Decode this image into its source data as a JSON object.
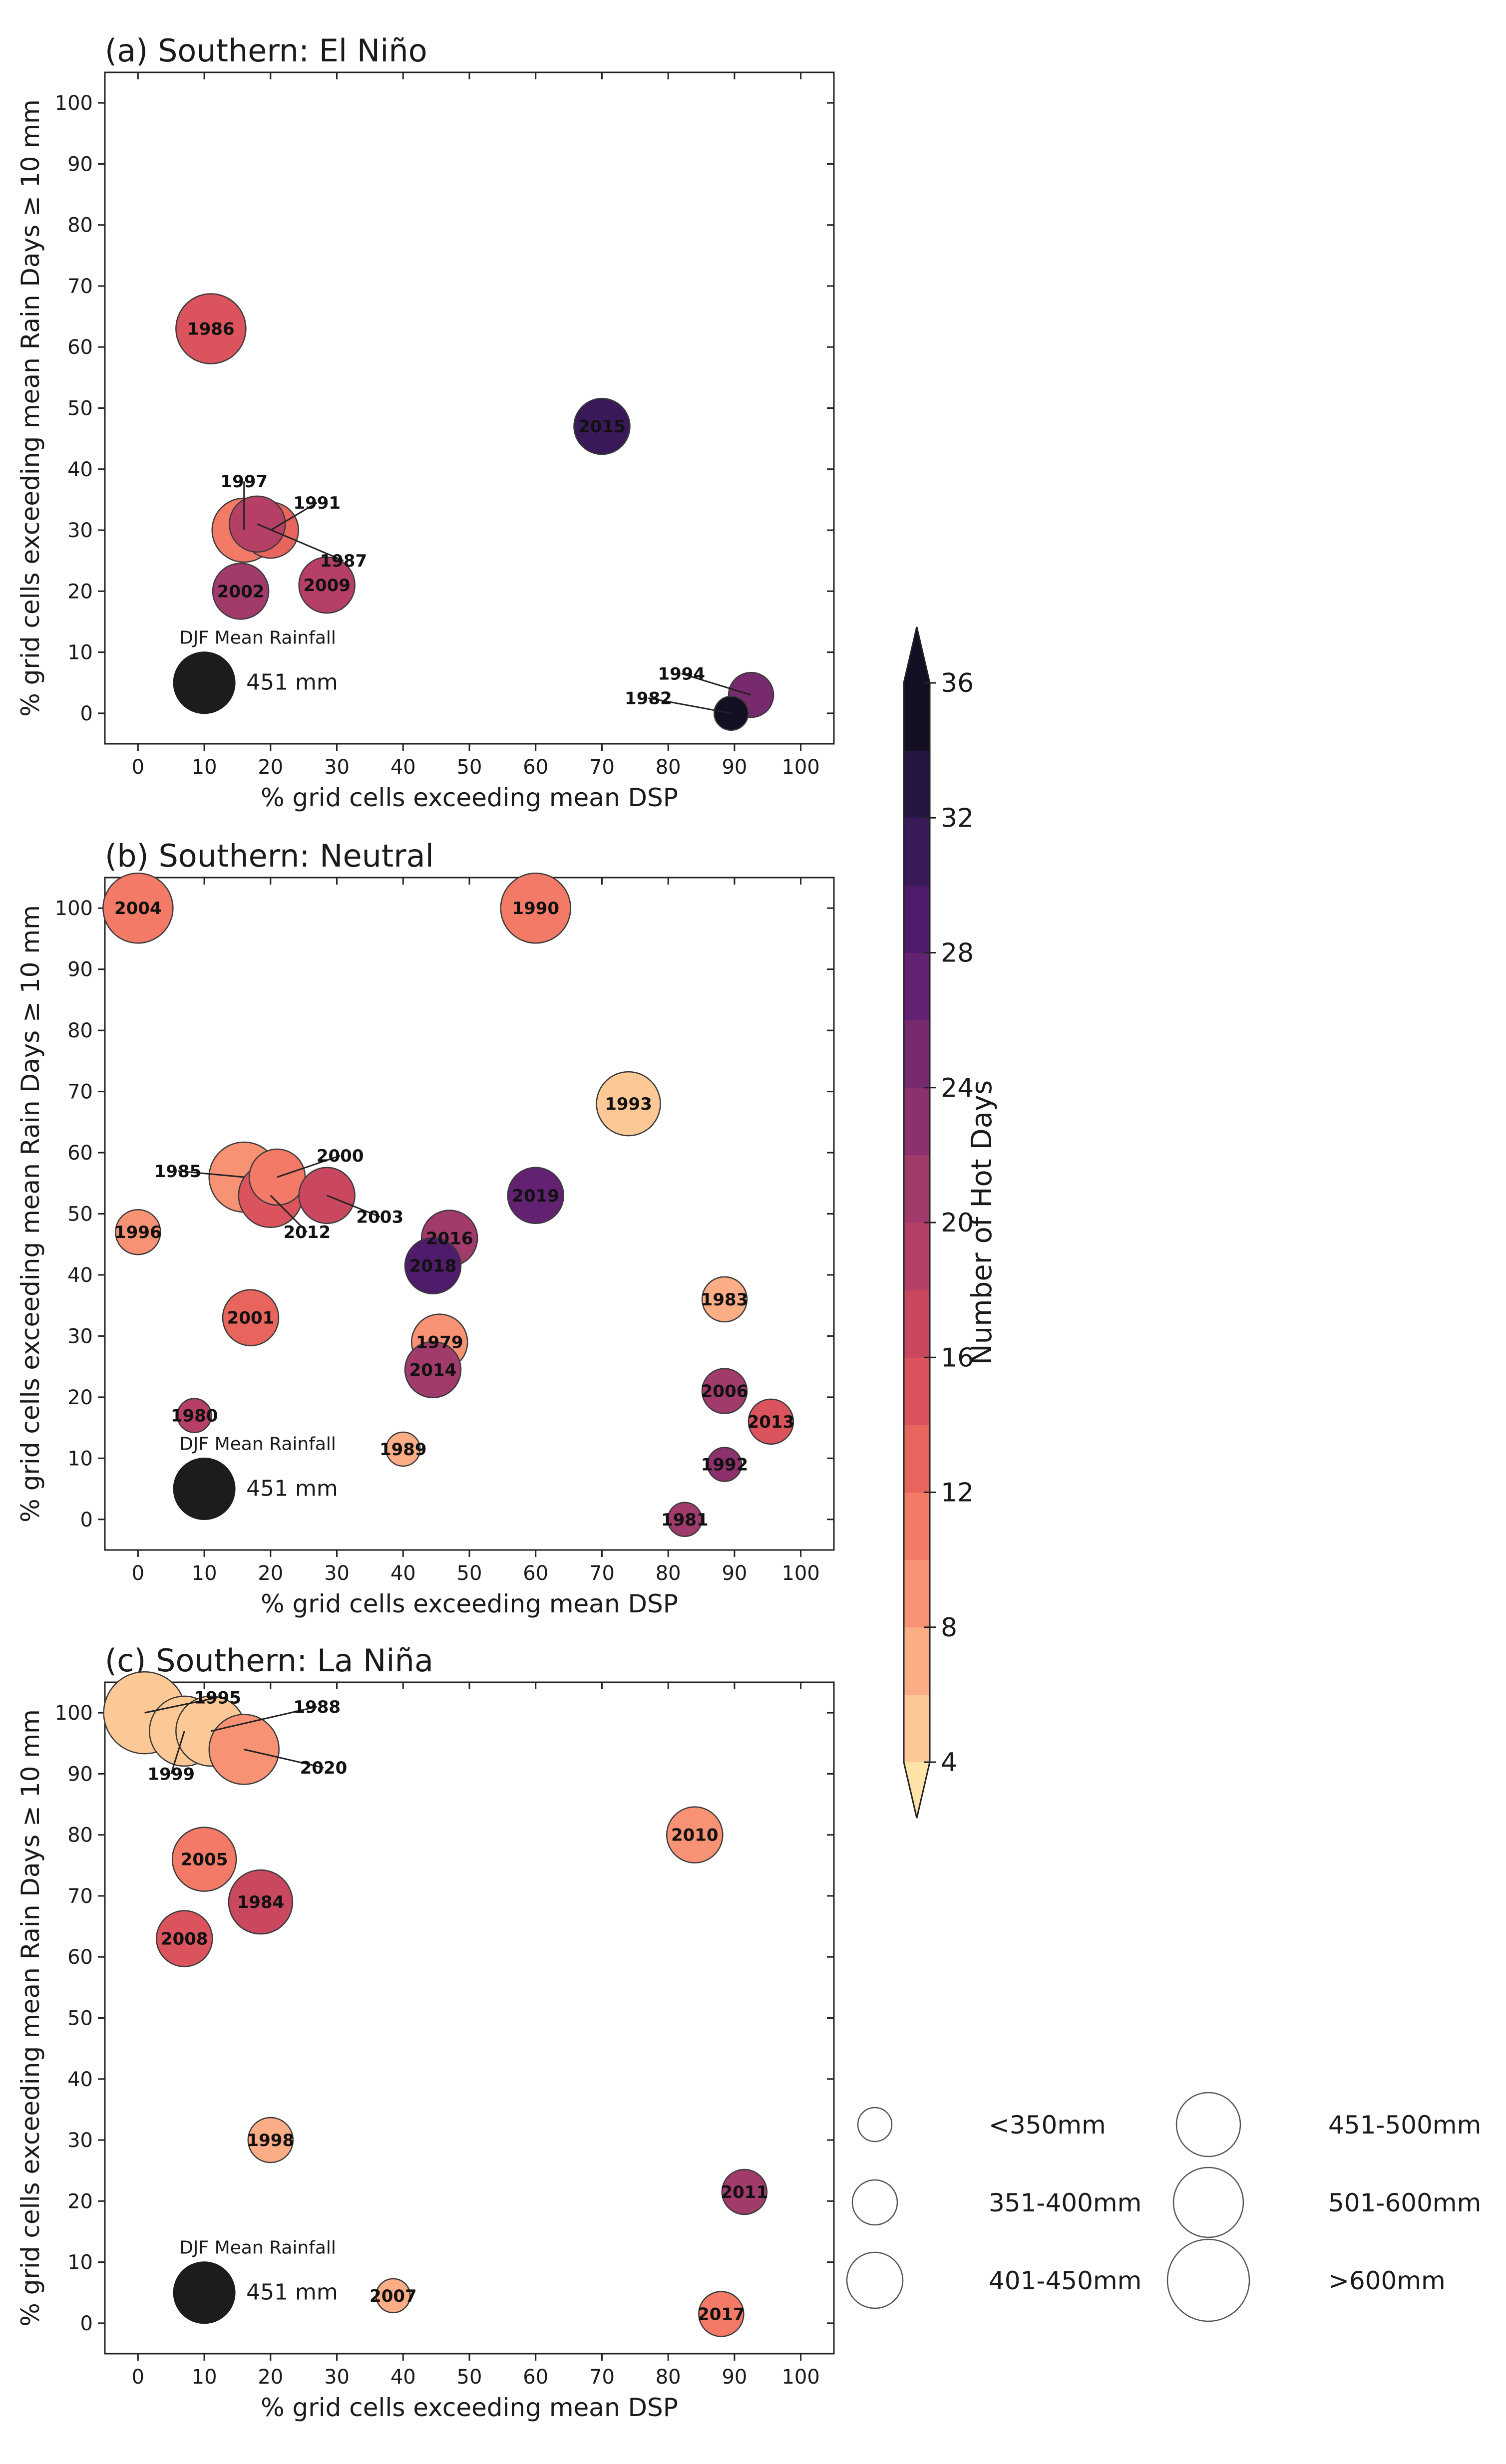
{
  "chart_data": {
    "type": "scatter",
    "x_tick_labels": [
      "0",
      "10",
      "20",
      "30",
      "40",
      "50",
      "60",
      "70",
      "80",
      "90",
      "100"
    ],
    "y_tick_labels": [
      "0",
      "10",
      "20",
      "30",
      "40",
      "50",
      "60",
      "70",
      "80",
      "90",
      "100"
    ],
    "xlim": [
      -5,
      105
    ],
    "ylim": [
      -5,
      105
    ],
    "panels": [
      {
        "title": "(a) Southern: El Niño",
        "xlabel": "% grid cells exceeding mean DSP",
        "ylabel": "% grid cells exceeding mean Rain Days ≥ 10 mm",
        "reference": {
          "title": "DJF Mean Rainfall",
          "value_label": "451 mm",
          "x": 10,
          "y": 5,
          "rainfall": 451
        },
        "points": [
          {
            "label": "1986",
            "x": 11,
            "y": 63,
            "hot_days": 14,
            "rainfall": 520
          },
          {
            "label": "2015",
            "x": 70,
            "y": 47,
            "hot_days": 30,
            "rainfall": 430
          },
          {
            "label": "1997",
            "x": 16,
            "y": 30,
            "hot_days": 10,
            "rainfall": 460,
            "text_dx": 0,
            "text_dy": 8
          },
          {
            "label": "1991",
            "x": 20,
            "y": 30,
            "hot_days": 12,
            "rainfall": 440,
            "text_dx": 7,
            "text_dy": 4.5
          },
          {
            "label": "1987",
            "x": 18,
            "y": 31,
            "hot_days": 18,
            "rainfall": 440,
            "text_dx": 13,
            "text_dy": -6
          },
          {
            "label": "2009",
            "x": 28.5,
            "y": 21,
            "hot_days": 19,
            "rainfall": 430
          },
          {
            "label": "2002",
            "x": 15.5,
            "y": 20,
            "hot_days": 21,
            "rainfall": 430
          },
          {
            "label": "1994",
            "x": 92.5,
            "y": 3,
            "hot_days": 25,
            "rainfall": 380,
            "text_dx": -10.5,
            "text_dy": 3.5
          },
          {
            "label": "1982",
            "x": 89.5,
            "y": 0,
            "hot_days": 35,
            "rainfall": 340,
            "text_dx": -12.5,
            "text_dy": 2.5
          }
        ]
      },
      {
        "title": "(b) Southern: Neutral",
        "xlabel": "% grid cells exceeding mean DSP",
        "ylabel": "% grid cells exceeding mean Rain Days ≥ 10 mm",
        "reference": {
          "title": "DJF Mean Rainfall",
          "value_label": "451 mm",
          "x": 10,
          "y": 5,
          "rainfall": 451
        },
        "points": [
          {
            "label": "2004",
            "x": 0,
            "y": 100,
            "hot_days": 11,
            "rainfall": 520
          },
          {
            "label": "1990",
            "x": 60,
            "y": 100,
            "hot_days": 11,
            "rainfall": 510
          },
          {
            "label": "1993",
            "x": 74,
            "y": 68,
            "hot_days": 5,
            "rainfall": 480
          },
          {
            "label": "1985",
            "x": 16,
            "y": 56,
            "hot_days": 9,
            "rainfall": 520,
            "text_dx": -10,
            "text_dy": 1
          },
          {
            "label": "2000",
            "x": 21,
            "y": 56,
            "hot_days": 10,
            "rainfall": 450,
            "text_dx": 9.5,
            "text_dy": 3.5
          },
          {
            "label": "2012",
            "x": 20,
            "y": 53,
            "hot_days": 14,
            "rainfall": 470,
            "text_dx": 5.5,
            "text_dy": -6
          },
          {
            "label": "2003",
            "x": 28.5,
            "y": 53,
            "hot_days": 16,
            "rainfall": 450,
            "text_dx": 8,
            "text_dy": -3.5
          },
          {
            "label": "2019",
            "x": 60,
            "y": 53,
            "hot_days": 27,
            "rainfall": 410
          },
          {
            "label": "2016",
            "x": 47,
            "y": 46,
            "hot_days": 21,
            "rainfall": 420
          },
          {
            "label": "2018",
            "x": 44.5,
            "y": 41.5,
            "hot_days": 29,
            "rainfall": 430
          },
          {
            "label": "1996",
            "x": 0,
            "y": 47,
            "hot_days": 9,
            "rainfall": 400
          },
          {
            "label": "1983",
            "x": 88.5,
            "y": 36,
            "hot_days": 6,
            "rainfall": 400
          },
          {
            "label": "2001",
            "x": 17,
            "y": 33,
            "hot_days": 12,
            "rainfall": 410
          },
          {
            "label": "1979",
            "x": 45.5,
            "y": 29,
            "hot_days": 8,
            "rainfall": 410
          },
          {
            "label": "2014",
            "x": 44.5,
            "y": 24.5,
            "hot_days": 20,
            "rainfall": 420
          },
          {
            "label": "2006",
            "x": 88.5,
            "y": 21,
            "hot_days": 20,
            "rainfall": 370
          },
          {
            "label": "2013",
            "x": 95.5,
            "y": 16,
            "hot_days": 15,
            "rainfall": 380
          },
          {
            "label": "1980",
            "x": 8.5,
            "y": 17,
            "hot_days": 18,
            "rainfall": 350
          },
          {
            "label": "1989",
            "x": 40,
            "y": 11.5,
            "hot_days": 7,
            "rainfall": 350
          },
          {
            "label": "1992",
            "x": 88.5,
            "y": 9,
            "hot_days": 23,
            "rainfall": 310
          },
          {
            "label": "1981",
            "x": 82.5,
            "y": 0,
            "hot_days": 20,
            "rainfall": 310
          }
        ]
      },
      {
        "title": "(c) Southern: La Niña",
        "xlabel": "% grid cells exceeding mean DSP",
        "ylabel": "% grid cells exceeding mean Rain Days ≥ 10 mm",
        "reference": {
          "title": "DJF Mean Rainfall",
          "value_label": "451 mm",
          "x": 10,
          "y": 5,
          "rainfall": 451
        },
        "points": [
          {
            "label": "1995",
            "x": 1,
            "y": 100,
            "hot_days": 4,
            "rainfall": 650,
            "text_dx": 11,
            "text_dy": 2.5
          },
          {
            "label": "1999",
            "x": 7,
            "y": 97,
            "hot_days": 4,
            "rainfall": 560,
            "text_dx": -2,
            "text_dy": -7
          },
          {
            "label": "1988",
            "x": 11,
            "y": 97,
            "hot_days": 4,
            "rainfall": 520,
            "text_dx": 16,
            "text_dy": 4
          },
          {
            "label": "2020",
            "x": 16,
            "y": 94,
            "hot_days": 9,
            "rainfall": 520,
            "text_dx": 12,
            "text_dy": -3
          },
          {
            "label": "2010",
            "x": 84,
            "y": 80,
            "hot_days": 8,
            "rainfall": 450
          },
          {
            "label": "2005",
            "x": 10,
            "y": 76,
            "hot_days": 11,
            "rainfall": 480
          },
          {
            "label": "1984",
            "x": 18.5,
            "y": 69,
            "hot_days": 17,
            "rainfall": 460
          },
          {
            "label": "2008",
            "x": 7,
            "y": 63,
            "hot_days": 14,
            "rainfall": 440
          },
          {
            "label": "1998",
            "x": 20,
            "y": 30,
            "hot_days": 6,
            "rainfall": 380
          },
          {
            "label": "2011",
            "x": 91.5,
            "y": 21.5,
            "hot_days": 20,
            "rainfall": 360
          },
          {
            "label": "2007",
            "x": 38.5,
            "y": 4.5,
            "hot_days": 6,
            "rainfall": 320
          },
          {
            "label": "2017",
            "x": 88,
            "y": 1.5,
            "hot_days": 10,
            "rainfall": 380
          }
        ]
      }
    ],
    "colorbar": {
      "label": "Number of Hot Days",
      "ticks": [
        "4",
        "8",
        "12",
        "16",
        "20",
        "24",
        "28",
        "32",
        "36"
      ],
      "min": 4,
      "max": 36,
      "step": 2,
      "extend": "both",
      "colors": [
        "#fde3a7",
        "#fcc996",
        "#fbad85",
        "#f89274",
        "#f27a67",
        "#e8655d",
        "#da535d",
        "#c94860",
        "#b63f66",
        "#a13b6b",
        "#8c316e",
        "#782a6f",
        "#632271",
        "#4e1c6a",
        "#3a1959",
        "#241640",
        "#130e22"
      ]
    },
    "size_legend": [
      {
        "label": "<350mm",
        "rainfall": 320
      },
      {
        "label": "351-400mm",
        "rainfall": 380
      },
      {
        "label": "401-450mm",
        "rainfall": 430
      },
      {
        "label": "451-500mm",
        "rainfall": 480
      },
      {
        "label": "501-600mm",
        "rainfall": 550
      },
      {
        "label": ">600mm",
        "rainfall": 650
      }
    ]
  }
}
